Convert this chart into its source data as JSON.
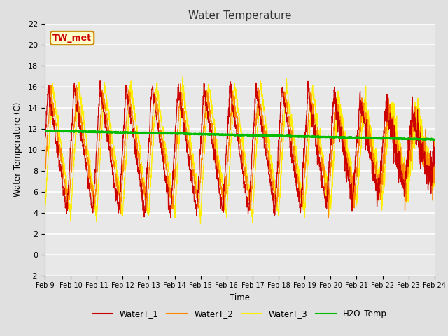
{
  "title": "Water Temperature",
  "xlabel": "Time",
  "ylabel": "Water Temperature (C)",
  "ylim": [
    -2,
    22
  ],
  "background_color": "#e0e0e0",
  "plot_bg_color": "#e8e8e8",
  "grid_color": "white",
  "x_tick_labels": [
    "Feb 9",
    "Feb 10",
    "Feb 11",
    "Feb 12",
    "Feb 13",
    "Feb 14",
    "Feb 15",
    "Feb 16",
    "Feb 17",
    "Feb 18",
    "Feb 19",
    "Feb 20",
    "Feb 21",
    "Feb 22",
    "Feb 23",
    "Feb 24"
  ],
  "series_colors": {
    "WaterT_1": "#cc0000",
    "WaterT_2": "#ff8800",
    "WaterT_3": "#ffee00",
    "H2O_Temp": "#00bb00"
  },
  "annotation_text": "TW_met",
  "annotation_color": "#cc0000",
  "annotation_bg": "#ffffcc",
  "annotation_border": "#cc8800"
}
